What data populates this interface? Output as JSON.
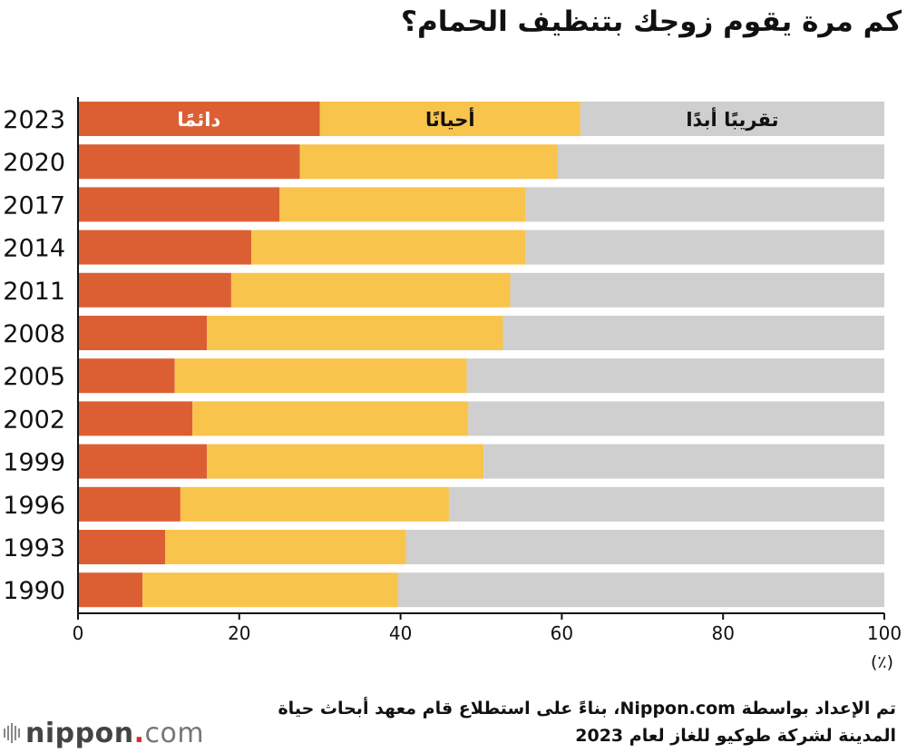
{
  "title": "كم مرة يقوم زوجك بتنظيف الحمام؟",
  "unit_label": "(٪)",
  "footer": {
    "source_line1": "تم الإعداد بواسطة Nippon.com، بناءً على استطلاع قام معهد أبحاث حياة",
    "source_line2": "المدينة لشركة طوكيو للغاز لعام 2023"
  },
  "brand": {
    "name_left": "nippon",
    "dot": ".",
    "name_right": "com"
  },
  "colors": {
    "always": "#dc5f33",
    "sometimes": "#f8c44c",
    "never": "#cfcfcf",
    "axis": "#111111"
  },
  "chart_data": {
    "type": "bar",
    "orientation": "horizontal",
    "stacked": true,
    "categories": [
      "2023",
      "2020",
      "2017",
      "2014",
      "2011",
      "2008",
      "2005",
      "2002",
      "1999",
      "1996",
      "1993",
      "1990"
    ],
    "series": [
      {
        "name": "دائمًا",
        "values": [
          30.0,
          27.5,
          25.0,
          21.5,
          19.0,
          16.0,
          12.0,
          14.2,
          16.0,
          12.7,
          10.8,
          8.0
        ]
      },
      {
        "name": "أحيانًا",
        "values": [
          32.3,
          32.0,
          30.5,
          34.0,
          34.6,
          36.7,
          36.2,
          34.2,
          34.3,
          33.3,
          29.9,
          31.7
        ]
      },
      {
        "name": "تقريبًا أبدًا",
        "values": [
          37.7,
          40.5,
          44.5,
          44.5,
          46.4,
          47.3,
          51.8,
          51.6,
          49.7,
          54.0,
          59.3,
          60.3
        ]
      }
    ],
    "xlim": [
      0,
      100
    ],
    "xticks": [
      0,
      20,
      40,
      60,
      80,
      100
    ],
    "legend": "inline-in-top-bar",
    "grid": false
  }
}
